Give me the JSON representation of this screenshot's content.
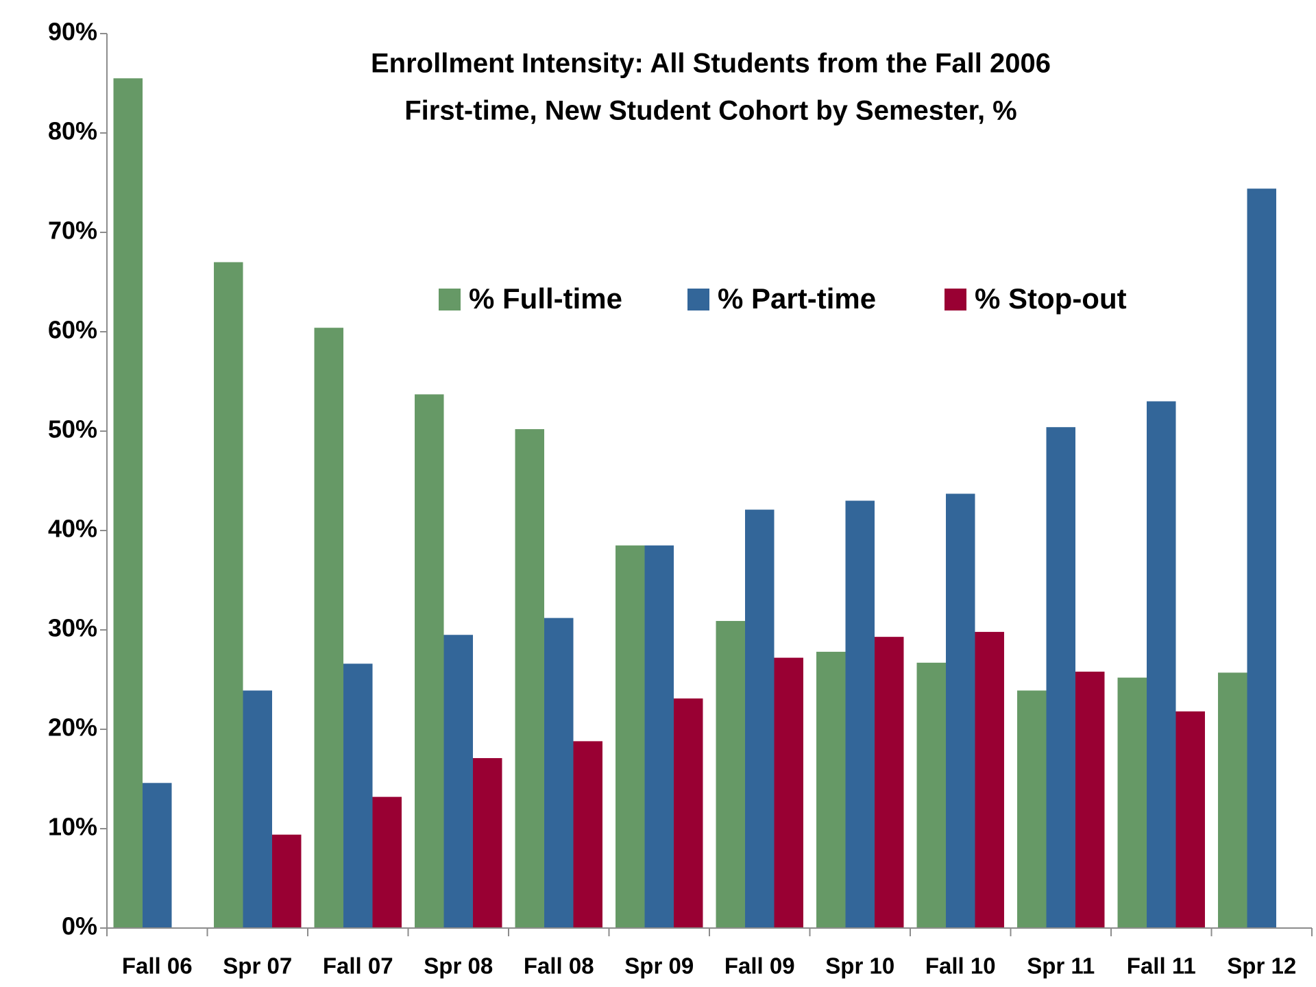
{
  "chart_data": {
    "type": "bar",
    "title": [
      "Enrollment Intensity: All Students from the Fall 2006",
      "First-time, New Student Cohort by Semester, %"
    ],
    "categories": [
      "Fall 06",
      "Spr 07",
      "Fall 07",
      "Spr 08",
      "Fall 08",
      "Spr 09",
      "Fall 09",
      "Spr 10",
      "Fall 10",
      "Spr 11",
      "Fall 11",
      "Spr 12"
    ],
    "series": [
      {
        "name": "% Full-time",
        "color": "#669966",
        "values": [
          85.5,
          67.0,
          60.4,
          53.7,
          50.2,
          38.5,
          30.9,
          27.8,
          26.7,
          23.9,
          25.2,
          25.7
        ]
      },
      {
        "name": "% Part-time",
        "color": "#336699",
        "values": [
          14.6,
          23.9,
          26.6,
          29.5,
          31.2,
          38.5,
          42.1,
          43.0,
          43.7,
          50.4,
          53.0,
          74.4
        ]
      },
      {
        "name": "% Stop-out",
        "color": "#990033",
        "values": [
          null,
          9.4,
          13.2,
          17.1,
          18.8,
          23.1,
          27.2,
          29.3,
          29.8,
          25.8,
          21.8,
          null
        ]
      }
    ],
    "ylim": [
      0,
      90
    ],
    "yticks": [
      {
        "value": 0,
        "label": "0%"
      },
      {
        "value": 10,
        "label": "10%"
      },
      {
        "value": 20,
        "label": "20%"
      },
      {
        "value": 30,
        "label": "30%"
      },
      {
        "value": 40,
        "label": "40%"
      },
      {
        "value": 50,
        "label": "50%"
      },
      {
        "value": 60,
        "label": "60%"
      },
      {
        "value": 70,
        "label": "70%"
      },
      {
        "value": 80,
        "label": "80%"
      },
      {
        "value": 90,
        "label": "90%"
      }
    ],
    "grid": false
  }
}
